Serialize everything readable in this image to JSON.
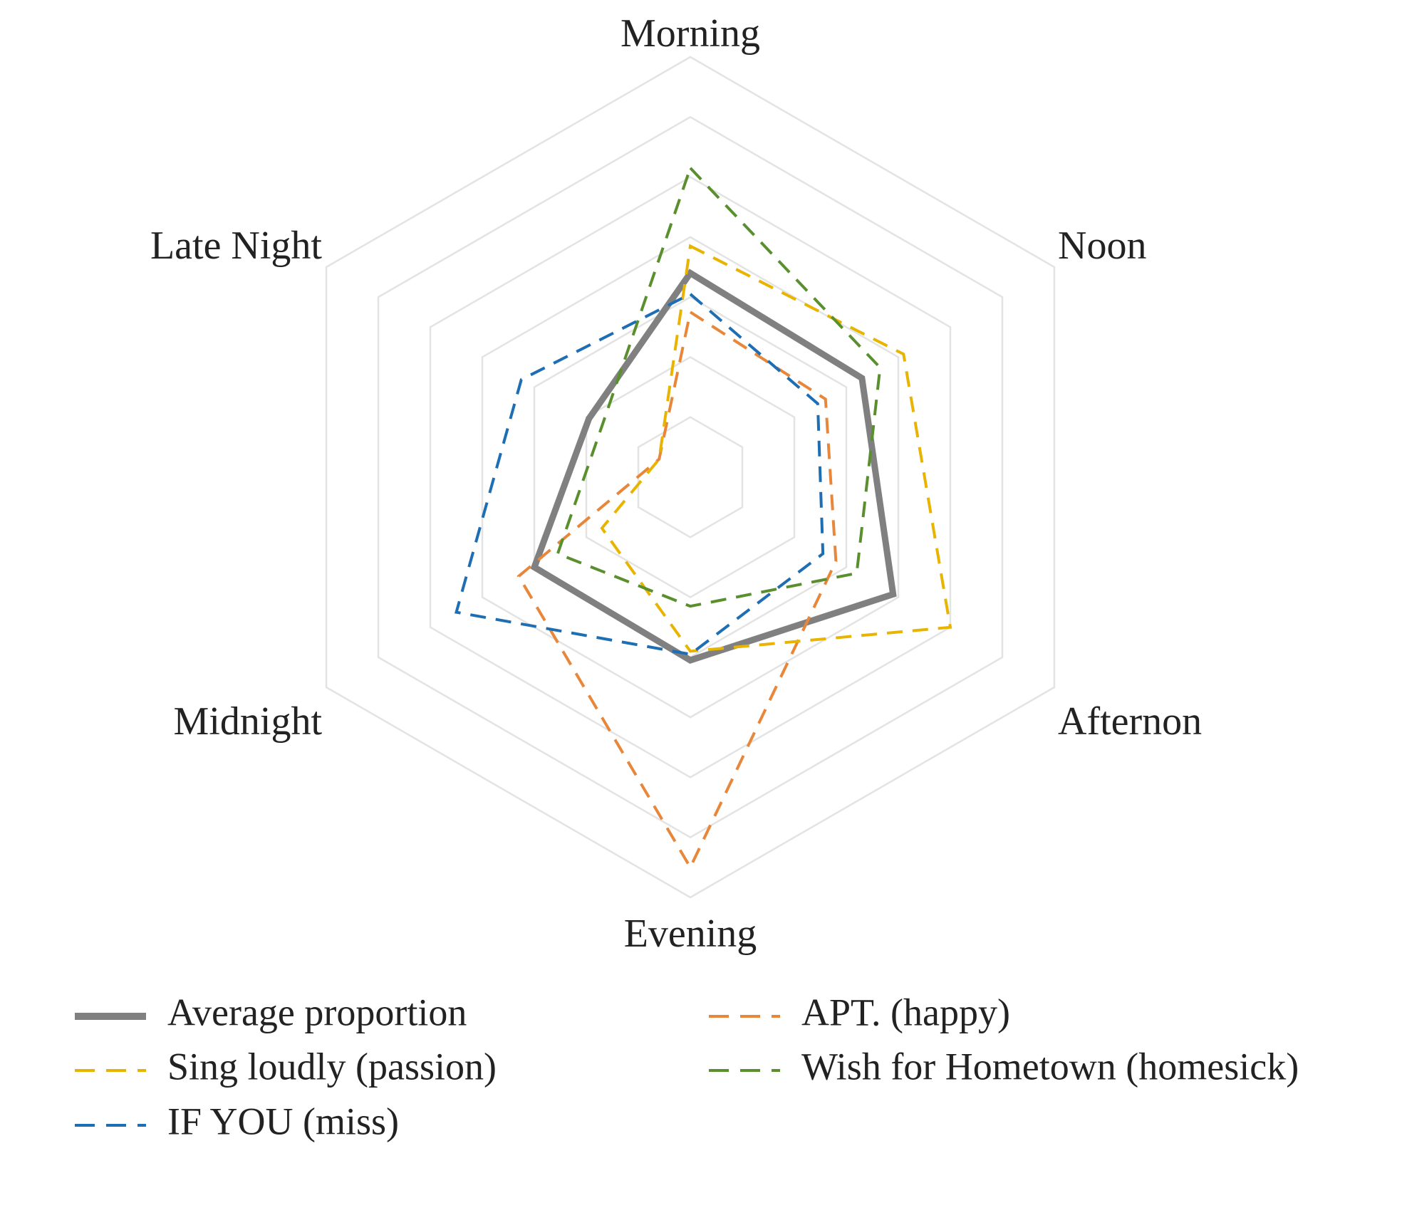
{
  "chart_data": {
    "type": "radar",
    "axes": [
      "Morning",
      "Noon",
      "Afternon",
      "Evening",
      "Midnight",
      "Late Night"
    ],
    "rlim": [
      0,
      7
    ],
    "grid": true,
    "grid_levels": 7,
    "legend_position": "bottom",
    "series": [
      {
        "name": "Average proportion",
        "values": [
          3.4,
          3.3,
          3.9,
          3.05,
          3.0,
          1.95
        ],
        "color": "#808080",
        "style": "solid"
      },
      {
        "name": "APT. (happy)",
        "values": [
          2.75,
          2.6,
          2.8,
          6.5,
          3.3,
          0.6
        ],
        "color": "#E8863A",
        "style": "dashed"
      },
      {
        "name": "Sing loudly (passion)",
        "values": [
          3.85,
          4.1,
          5.0,
          2.9,
          1.7,
          0.6
        ],
        "color": "#E8B400",
        "style": "dashed"
      },
      {
        "name": "Wish for Hometown (homesick)",
        "values": [
          5.15,
          3.65,
          3.2,
          2.15,
          2.55,
          1.7
        ],
        "color": "#5A8F2E",
        "style": "dashed"
      },
      {
        "name": "IF YOU (miss)",
        "values": [
          3.05,
          2.45,
          2.55,
          2.95,
          4.5,
          3.25
        ],
        "color": "#1E6EB4",
        "style": "dashed"
      }
    ]
  }
}
